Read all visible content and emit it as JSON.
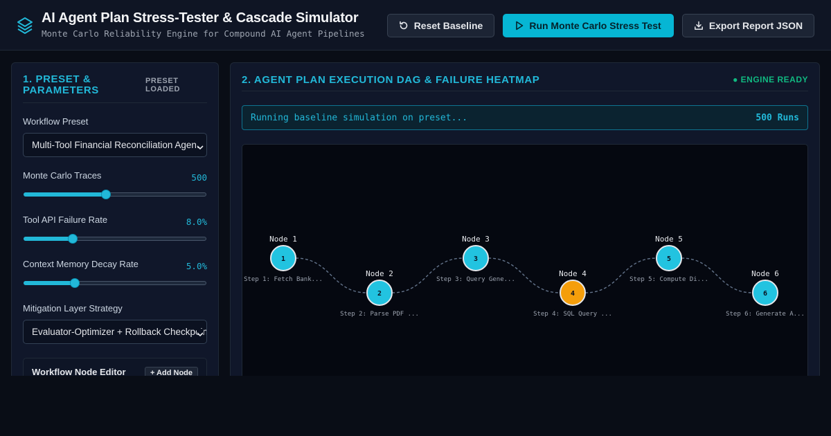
{
  "header": {
    "title": "AI Agent Plan Stress-Tester & Cascade Simulator",
    "subtitle": "Monte Carlo Reliability Engine for Compound AI Agent Pipelines",
    "buttons": {
      "reset": "Reset Baseline",
      "run": "Run Monte Carlo Stress Test",
      "export": "Export Report JSON"
    },
    "icons": {
      "logo": "layers-icon",
      "reset": "rotate-ccw-icon",
      "run": "play-icon",
      "export": "download-icon"
    }
  },
  "left_panel": {
    "title": "1. PRESET & PARAMETERS",
    "badge": "PRESET LOADED",
    "workflow_preset": {
      "label": "Workflow Preset",
      "value": "Multi-Tool Financial Reconciliation Agent"
    },
    "monte_carlo_traces": {
      "label": "Monte Carlo Traces",
      "value": "500",
      "fraction": 0.45
    },
    "tool_failure_rate": {
      "label": "Tool API Failure Rate",
      "value": "8.0%",
      "fraction": 0.27
    },
    "memory_decay_rate": {
      "label": "Context Memory Decay Rate",
      "value": "5.0%",
      "fraction": 0.28
    },
    "mitigation": {
      "label": "Mitigation Layer Strategy",
      "value": "Evaluator-Optimizer + Rollback Checkpoints"
    },
    "node_editor": {
      "title": "Workflow Node Editor",
      "add_label": "+ Add Node"
    }
  },
  "right_panel": {
    "title": "2. AGENT PLAN EXECUTION DAG & FAILURE HEATMAP",
    "status_badge": "● ENGINE READY",
    "status_message": "Running baseline simulation on preset...",
    "runs_label": "500 Runs",
    "colors": {
      "ok": "#22c3e0",
      "warn": "#f59e0b"
    },
    "nodes": [
      {
        "label": "Node 1",
        "num": "1",
        "desc": "Step 1: Fetch Bank...",
        "status": "ok"
      },
      {
        "label": "Node 2",
        "num": "2",
        "desc": "Step 2: Parse PDF ...",
        "status": "ok"
      },
      {
        "label": "Node 3",
        "num": "3",
        "desc": "Step 3: Query Gene...",
        "status": "ok"
      },
      {
        "label": "Node 4",
        "num": "4",
        "desc": "Step 4: SQL Query ...",
        "status": "warn"
      },
      {
        "label": "Node 5",
        "num": "5",
        "desc": "Step 5: Compute Di...",
        "status": "ok"
      },
      {
        "label": "Node 6",
        "num": "6",
        "desc": "Step 6: Generate A...",
        "status": "ok"
      }
    ]
  }
}
